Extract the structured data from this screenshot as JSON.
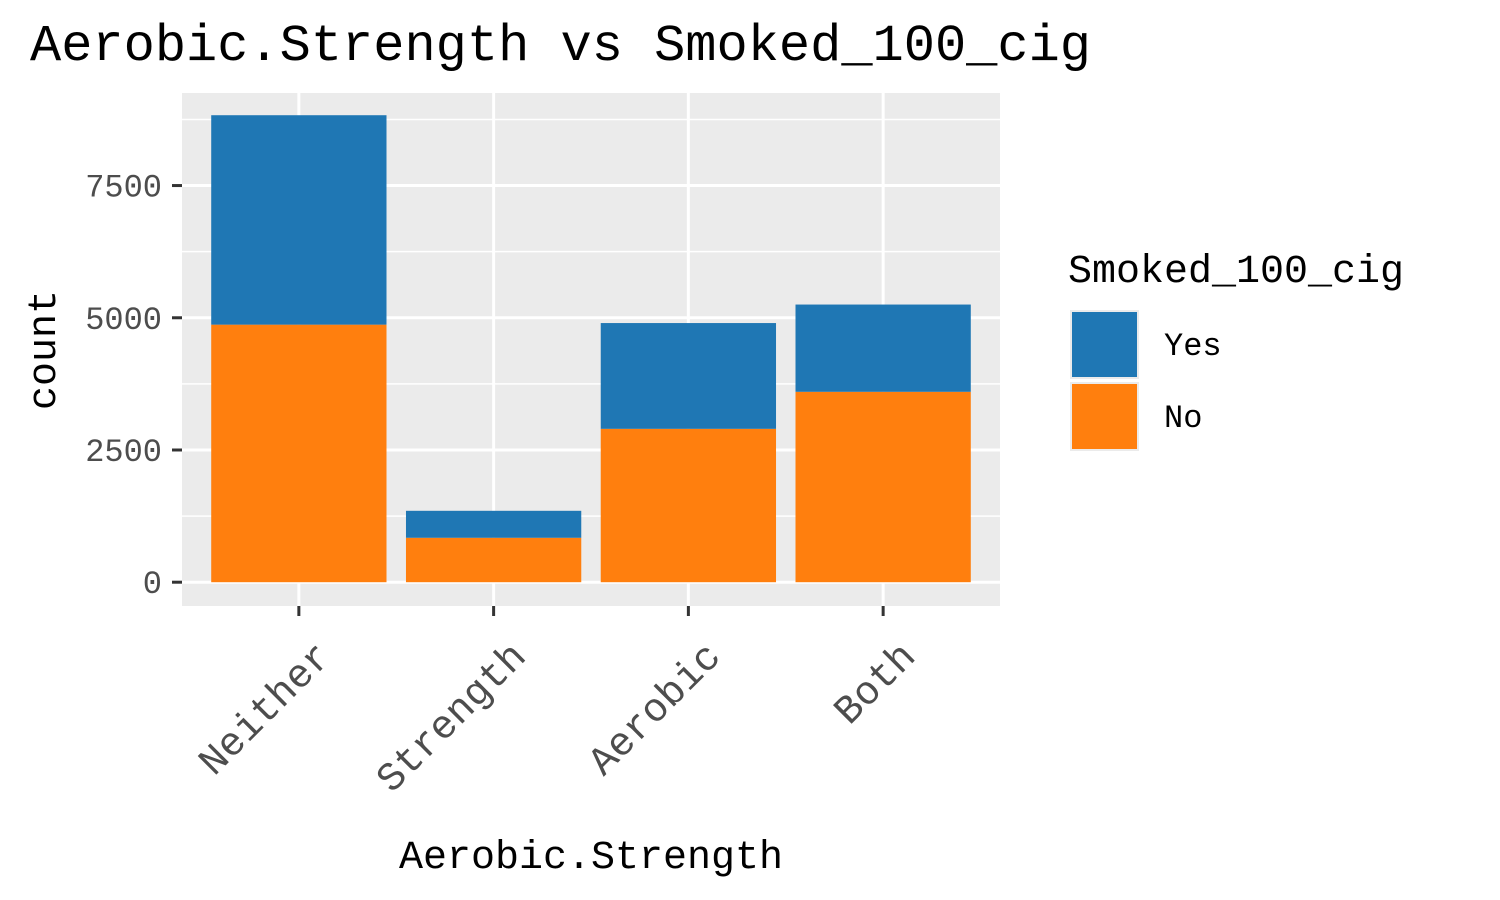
{
  "chart_data": {
    "type": "bar",
    "stacked": true,
    "title": "Aerobic.Strength vs Smoked_100_cig",
    "xlabel": "Aerobic.Strength",
    "ylabel": "count",
    "categories": [
      "Neither",
      "Strength",
      "Aerobic",
      "Both"
    ],
    "series": [
      {
        "name": "No",
        "color": "#ff7f0e",
        "values": [
          4870,
          840,
          2900,
          3600
        ]
      },
      {
        "name": "Yes",
        "color": "#1f77b4",
        "values": [
          3960,
          510,
          2000,
          1650
        ]
      }
    ],
    "ylim": [
      -450,
      9250
    ],
    "yticks": [
      0,
      2500,
      5000,
      7500
    ],
    "ytick_labels": [
      "0",
      "2500",
      "5000",
      "7500"
    ],
    "grid": true,
    "panel_background": "#ebebeb",
    "legend": {
      "title": "Smoked_100_cig",
      "position": "right",
      "entries": [
        {
          "label": "Yes",
          "color": "#1f77b4"
        },
        {
          "label": "No",
          "color": "#ff7f0e"
        }
      ]
    }
  }
}
